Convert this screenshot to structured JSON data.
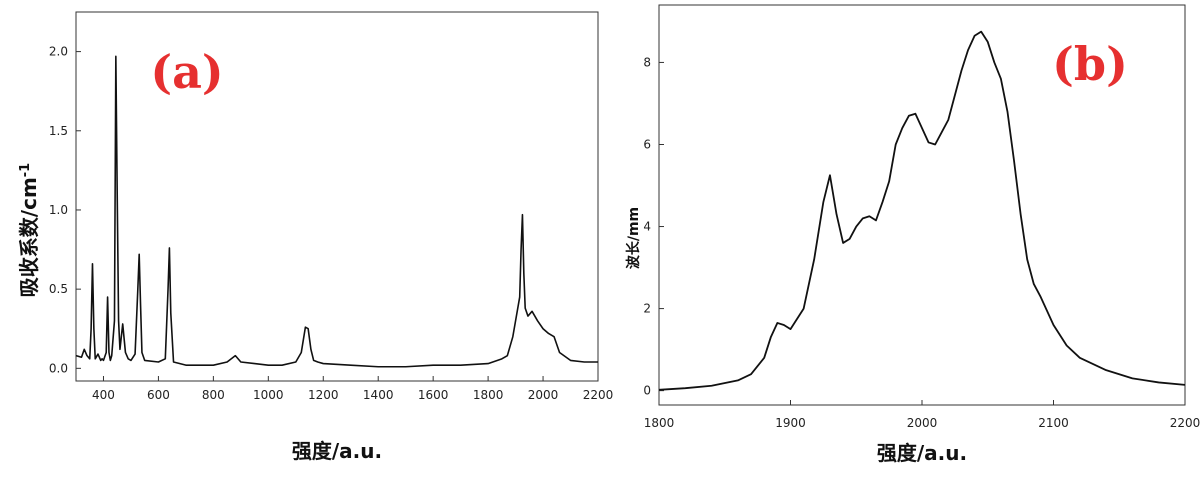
{
  "chart_data": [
    {
      "type": "line",
      "panel_label": "(a)",
      "xlabel": "强度/a.u.",
      "ylabel": "吸收系数/cm",
      "ylabel_sup": "-1",
      "xlim": [
        300,
        2200
      ],
      "ylim": [
        -0.08,
        2.25
      ],
      "xticks": [
        400,
        600,
        800,
        1000,
        1200,
        1400,
        1600,
        1800,
        2000,
        2200
      ],
      "yticks": [
        0.0,
        0.5,
        1.0,
        1.5,
        2.0
      ],
      "ytick_labels": [
        "0.0",
        "0.5",
        "1.0",
        "1.5",
        "2.0"
      ],
      "color": "#111111",
      "series": [
        {
          "x": [
            300,
            320,
            330,
            340,
            350,
            355,
            360,
            365,
            370,
            380,
            390,
            395,
            400,
            410,
            415,
            420,
            425,
            430,
            440,
            445,
            450,
            455,
            460,
            470,
            480,
            490,
            500,
            515,
            525,
            530,
            535,
            540,
            550,
            600,
            625,
            635,
            640,
            645,
            655,
            700,
            800,
            850,
            880,
            900,
            950,
            1000,
            1050,
            1100,
            1120,
            1135,
            1145,
            1155,
            1165,
            1180,
            1200,
            1300,
            1400,
            1500,
            1600,
            1700,
            1800,
            1850,
            1870,
            1890,
            1905,
            1915,
            1920,
            1925,
            1930,
            1935,
            1945,
            1960,
            1980,
            2000,
            2020,
            2040,
            2060,
            2100,
            2150,
            2200
          ],
          "y": [
            0.08,
            0.07,
            0.12,
            0.08,
            0.06,
            0.25,
            0.66,
            0.25,
            0.06,
            0.09,
            0.05,
            0.06,
            0.05,
            0.1,
            0.45,
            0.1,
            0.05,
            0.08,
            0.3,
            1.97,
            1.1,
            0.3,
            0.12,
            0.28,
            0.1,
            0.06,
            0.05,
            0.09,
            0.5,
            0.72,
            0.4,
            0.1,
            0.05,
            0.04,
            0.06,
            0.5,
            0.76,
            0.35,
            0.04,
            0.02,
            0.02,
            0.04,
            0.08,
            0.04,
            0.03,
            0.02,
            0.02,
            0.04,
            0.1,
            0.26,
            0.25,
            0.12,
            0.05,
            0.04,
            0.03,
            0.02,
            0.01,
            0.01,
            0.02,
            0.02,
            0.03,
            0.06,
            0.08,
            0.2,
            0.35,
            0.45,
            0.75,
            0.97,
            0.6,
            0.38,
            0.33,
            0.36,
            0.3,
            0.25,
            0.22,
            0.2,
            0.1,
            0.05,
            0.04,
            0.04
          ]
        }
      ]
    },
    {
      "type": "line",
      "panel_label": "(b)",
      "xlabel": "强度/a.u.",
      "ylabel": "波长/mm",
      "xlim": [
        1800,
        2200
      ],
      "ylim": [
        -0.35,
        9.4
      ],
      "xticks": [
        1800,
        1900,
        2000,
        2100,
        2200
      ],
      "yticks": [
        0,
        2,
        4,
        6,
        8
      ],
      "ytick_labels": [
        "0",
        "2",
        "4",
        "6",
        "8"
      ],
      "color": "#111111",
      "series": [
        {
          "x": [
            1800,
            1820,
            1840,
            1860,
            1870,
            1880,
            1885,
            1890,
            1895,
            1900,
            1910,
            1918,
            1925,
            1930,
            1935,
            1940,
            1945,
            1950,
            1955,
            1960,
            1965,
            1970,
            1975,
            1980,
            1985,
            1990,
            1995,
            2000,
            2005,
            2010,
            2015,
            2020,
            2025,
            2030,
            2035,
            2040,
            2045,
            2050,
            2055,
            2060,
            2065,
            2070,
            2075,
            2080,
            2085,
            2090,
            2100,
            2110,
            2120,
            2140,
            2160,
            2180,
            2200
          ],
          "y": [
            0.02,
            0.06,
            0.12,
            0.25,
            0.4,
            0.8,
            1.3,
            1.65,
            1.6,
            1.5,
            2.0,
            3.2,
            4.6,
            5.25,
            4.3,
            3.6,
            3.7,
            4.0,
            4.2,
            4.25,
            4.15,
            4.6,
            5.1,
            6.0,
            6.4,
            6.7,
            6.75,
            6.4,
            6.05,
            6.0,
            6.3,
            6.6,
            7.2,
            7.8,
            8.3,
            8.65,
            8.75,
            8.5,
            8.0,
            7.6,
            6.8,
            5.6,
            4.3,
            3.2,
            2.6,
            2.3,
            1.6,
            1.1,
            0.8,
            0.5,
            0.3,
            0.2,
            0.14
          ]
        }
      ]
    }
  ]
}
